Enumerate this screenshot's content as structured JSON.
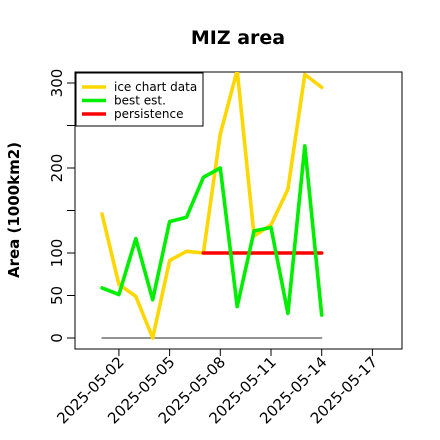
{
  "chart_data": {
    "type": "line",
    "title": "MIZ area",
    "ylabel": "Area (1000km2)",
    "xlabel": "",
    "ylim": [
      0,
      315
    ],
    "yticks": [
      0,
      50,
      100,
      200,
      300
    ],
    "yticks_minor": [
      150,
      250
    ],
    "xticks": [
      "2025-05-02",
      "2025-05-05",
      "2025-05-08",
      "2025-05-11",
      "2025-05-14",
      "2025-05-17"
    ],
    "legend": "top-left",
    "grid": false,
    "series": [
      {
        "name": "ice chart data",
        "color": "#FFD700",
        "x": [
          "2025-05-01",
          "2025-05-02",
          "2025-05-03",
          "2025-05-04",
          "2025-05-05",
          "2025-05-06",
          "2025-05-07",
          "2025-05-08",
          "2025-05-09",
          "2025-05-10",
          "2025-05-11",
          "2025-05-12",
          "2025-05-13",
          "2025-05-14"
        ],
        "values": [
          146,
          63,
          49,
          0,
          91,
          102,
          100,
          240,
          315,
          120,
          133,
          175,
          310,
          295
        ]
      },
      {
        "name": "best est.",
        "color": "#00EE00",
        "x": [
          "2025-05-01",
          "2025-05-02",
          "2025-05-03",
          "2025-05-04",
          "2025-05-05",
          "2025-05-06",
          "2025-05-07",
          "2025-05-08",
          "2025-05-09",
          "2025-05-10",
          "2025-05-11",
          "2025-05-12",
          "2025-05-13",
          "2025-05-14"
        ],
        "values": [
          59,
          51,
          117,
          45,
          137,
          142,
          189,
          200,
          37,
          126,
          130,
          29,
          226,
          27
        ]
      },
      {
        "name": "persistence",
        "color": "#FF0000",
        "x": [
          "2025-05-07",
          "2025-05-14"
        ],
        "values": [
          100,
          100
        ]
      },
      {
        "name": "",
        "color": "#555555",
        "x": [
          "2025-05-01",
          "2025-05-14"
        ],
        "values": [
          0,
          0
        ]
      }
    ]
  }
}
